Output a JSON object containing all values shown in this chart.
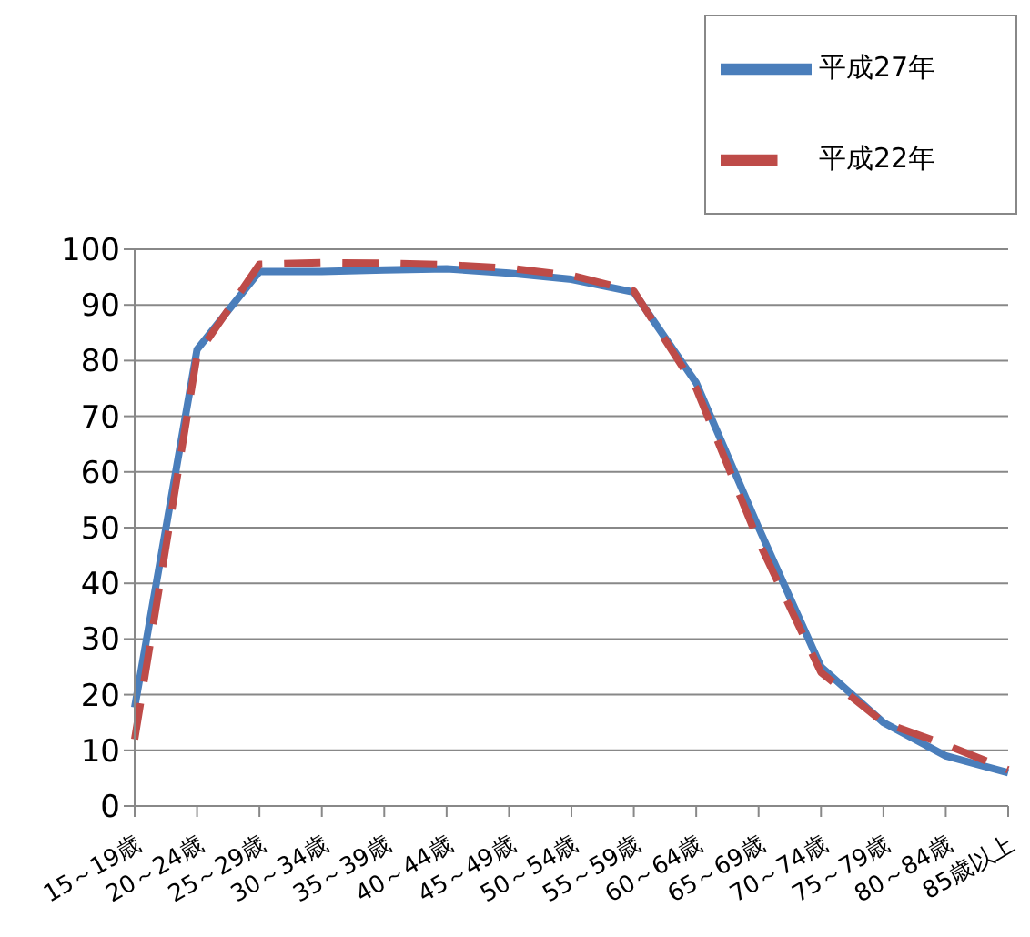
{
  "chart_data": {
    "type": "line",
    "categories": [
      "15～19歳",
      "20～24歳",
      "25～29歳",
      "30～34歳",
      "35～39歳",
      "40～44歳",
      "45～49歳",
      "50～54歳",
      "55～59歳",
      "60～64歳",
      "65～69歳",
      "70～74歳",
      "75～79歳",
      "80～84歳",
      "85歳以上"
    ],
    "series": [
      {
        "name": "平成27年",
        "color": "#4a7ebb",
        "line_style": "solid",
        "values": [
          17.7,
          82,
          96,
          96,
          96.3,
          96.5,
          95.7,
          94.6,
          92.3,
          76,
          50,
          25,
          15,
          9,
          6
        ]
      },
      {
        "name": "平成22年",
        "color": "#be4b48",
        "line_style": "dashed",
        "values": [
          12,
          81,
          97.3,
          97.6,
          97.5,
          97.2,
          96.6,
          95.3,
          92.5,
          75,
          47.5,
          24,
          15,
          11,
          6.5
        ]
      }
    ],
    "ylim": [
      0,
      100
    ],
    "yticks": [
      0,
      10,
      20,
      30,
      40,
      50,
      60,
      70,
      80,
      90,
      100
    ],
    "grid": "y",
    "legend": "top right",
    "marker": "none"
  }
}
